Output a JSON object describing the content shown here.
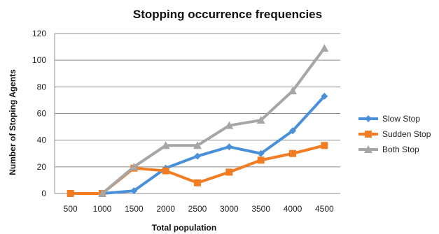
{
  "chart_data": {
    "type": "line",
    "title": "Stopping occurrence frequencies",
    "xlabel": "Total population",
    "ylabel": "Number of Stoping Agents",
    "categories": [
      "500",
      "1000",
      "1500",
      "2000",
      "2500",
      "3000",
      "3500",
      "4000",
      "4500"
    ],
    "ylim": [
      0,
      120
    ],
    "yticks": [
      0,
      20,
      40,
      60,
      80,
      100,
      120
    ],
    "grid": true,
    "legend_position": "right",
    "series": [
      {
        "name": "Slow Stop",
        "color": "#4a90d9",
        "marker": "diamond",
        "values": [
          null,
          0,
          2,
          19,
          28,
          35,
          30,
          47,
          73
        ]
      },
      {
        "name": "Sudden Stop",
        "color": "#f27c22",
        "marker": "square",
        "values": [
          0,
          0,
          19,
          17,
          8,
          16,
          25,
          30,
          36
        ]
      },
      {
        "name": "Both Stop",
        "color": "#a6a6a6",
        "marker": "triangle",
        "values": [
          null,
          0,
          20,
          36,
          36,
          51,
          55,
          77,
          109
        ]
      }
    ]
  }
}
